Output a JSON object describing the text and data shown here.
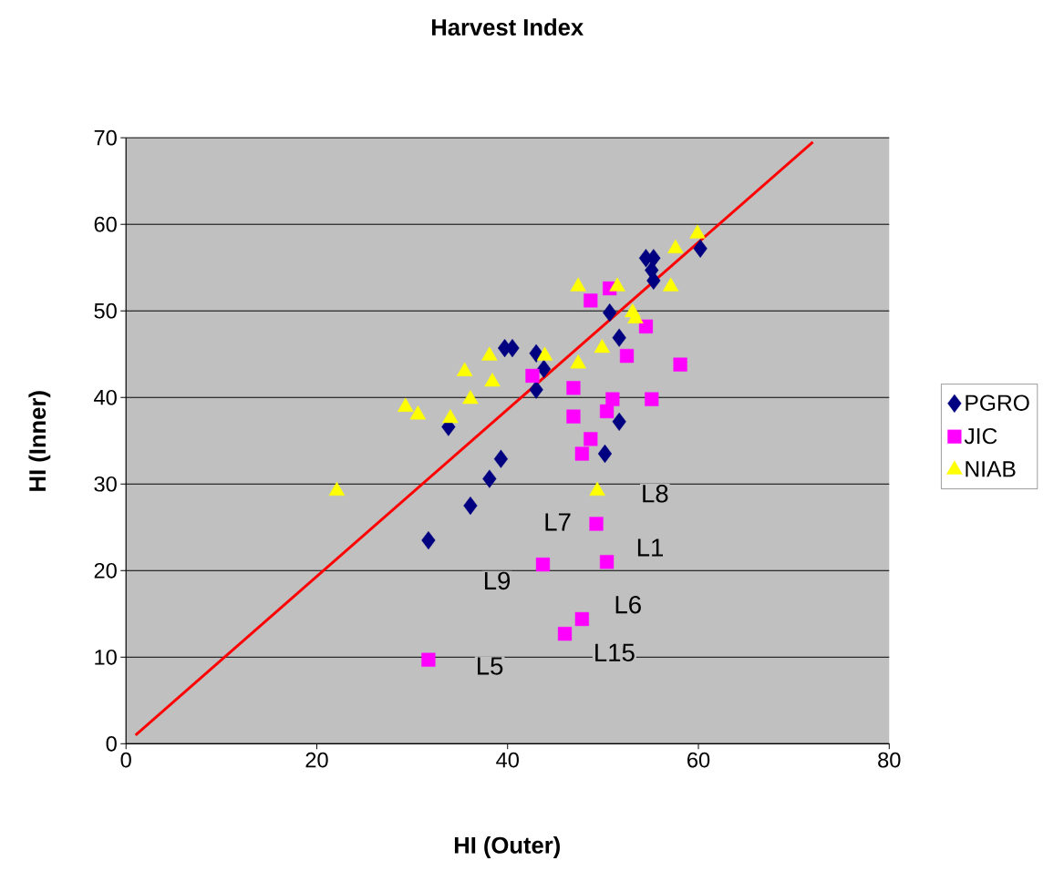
{
  "chart_data": {
    "type": "scatter",
    "title": "Harvest Index",
    "xlabel": "HI (Outer)",
    "ylabel": "HI (Inner)",
    "xlim": [
      0,
      80
    ],
    "ylim": [
      0,
      70
    ],
    "xticks": [
      0,
      20,
      40,
      60,
      80
    ],
    "yticks": [
      0,
      10,
      20,
      30,
      40,
      50,
      60,
      70
    ],
    "grid": "y",
    "legend": "right",
    "series": [
      {
        "name": "PGRO",
        "color": "#000080",
        "marker": "diamond",
        "x": [
          31.7,
          36.1,
          38.1,
          39.3,
          33.8,
          39.7,
          40.5,
          43.0,
          43.0,
          43.8,
          50.2,
          51.7,
          51.7,
          50.7,
          54.5,
          55.3,
          55.1,
          55.3,
          60.2
        ],
        "values": [
          23.5,
          27.5,
          30.6,
          32.9,
          36.6,
          45.7,
          45.7,
          45.1,
          40.9,
          43.3,
          33.5,
          37.2,
          46.9,
          49.8,
          56.1,
          56.1,
          54.7,
          53.5,
          57.2
        ]
      },
      {
        "name": "JIC",
        "color": "#ff00ff",
        "marker": "square",
        "x": [
          31.7,
          43.7,
          46.0,
          47.8,
          49.3,
          50.4,
          42.6,
          46.9,
          46.9,
          48.7,
          47.8,
          50.4,
          51.0,
          55.1,
          58.1,
          52.5,
          54.5,
          48.7,
          50.7
        ],
        "values": [
          9.7,
          20.7,
          12.7,
          14.4,
          25.4,
          21.0,
          42.5,
          41.1,
          37.8,
          35.2,
          33.5,
          38.4,
          39.8,
          39.8,
          43.8,
          44.8,
          48.2,
          51.2,
          52.6
        ]
      },
      {
        "name": "NIAB",
        "color": "#ffff00",
        "marker": "triangle",
        "x": [
          22.1,
          29.3,
          30.6,
          34.0,
          35.5,
          36.1,
          38.1,
          38.4,
          43.9,
          47.4,
          47.4,
          49.9,
          49.4,
          51.5,
          53.1,
          53.4,
          57.1,
          57.6,
          59.9
        ],
        "values": [
          29.2,
          38.9,
          38.0,
          37.6,
          43.0,
          39.8,
          44.8,
          41.8,
          44.8,
          43.9,
          52.8,
          45.7,
          29.2,
          52.8,
          49.8,
          49.1,
          52.8,
          57.2,
          58.9
        ]
      },
      {
        "type": "line",
        "color": "#ff0000",
        "marker": "none",
        "line_style": "solid",
        "x": [
          1,
          72
        ],
        "values": [
          1,
          69.5
        ]
      }
    ],
    "annotations": [
      {
        "text": "L8",
        "x": 49.4,
        "y": 29.2
      },
      {
        "text": "L7",
        "x": 49.3,
        "y": 25.4
      },
      {
        "text": "L1",
        "x": 50.4,
        "y": 21.0
      },
      {
        "text": "L9",
        "x": 43.7,
        "y": 20.7
      },
      {
        "text": "L6",
        "x": 47.8,
        "y": 14.4
      },
      {
        "text": "L15",
        "x": 46.0,
        "y": 12.7
      },
      {
        "text": "L5",
        "x": 31.7,
        "y": 9.7
      }
    ]
  }
}
